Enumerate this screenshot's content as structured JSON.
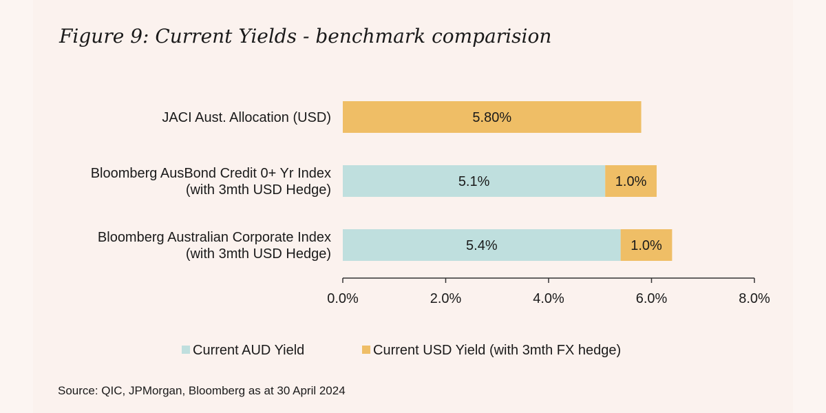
{
  "title": "Figure 9: Current Yields - benchmark comparision",
  "source": "Source: QIC, JPMorgan, Bloomberg as at 30 April 2024",
  "colors": {
    "aud": "#bfdfde",
    "usd": "#efbe66",
    "background": "#fbf2ee"
  },
  "chart_data": {
    "type": "bar",
    "orientation": "horizontal",
    "stacked": true,
    "categories": [
      [
        "JACI Aust. Allocation (USD)"
      ],
      [
        "Bloomberg AusBond Credit 0+ Yr Index",
        "(with 3mth USD Hedge)"
      ],
      [
        "Bloomberg Australian Corporate Index",
        "(with 3mth USD Hedge)"
      ]
    ],
    "series": [
      {
        "name": "Current AUD Yield",
        "color": "#bfdfde",
        "values": [
          null,
          5.1,
          5.4
        ],
        "labels": [
          "",
          "5.1%",
          "5.4%"
        ]
      },
      {
        "name": "Current USD Yield (with 3mth FX hedge)",
        "color": "#efbe66",
        "values": [
          5.8,
          1.0,
          1.0
        ],
        "labels": [
          "5.80%",
          "1.0%",
          "1.0%"
        ]
      }
    ],
    "xlim": [
      0,
      8
    ],
    "xticks": [
      0,
      2,
      4,
      6,
      8
    ],
    "xtick_labels": [
      "0.0%",
      "2.0%",
      "4.0%",
      "6.0%",
      "8.0%"
    ],
    "legend_position": "bottom",
    "grid": false
  }
}
